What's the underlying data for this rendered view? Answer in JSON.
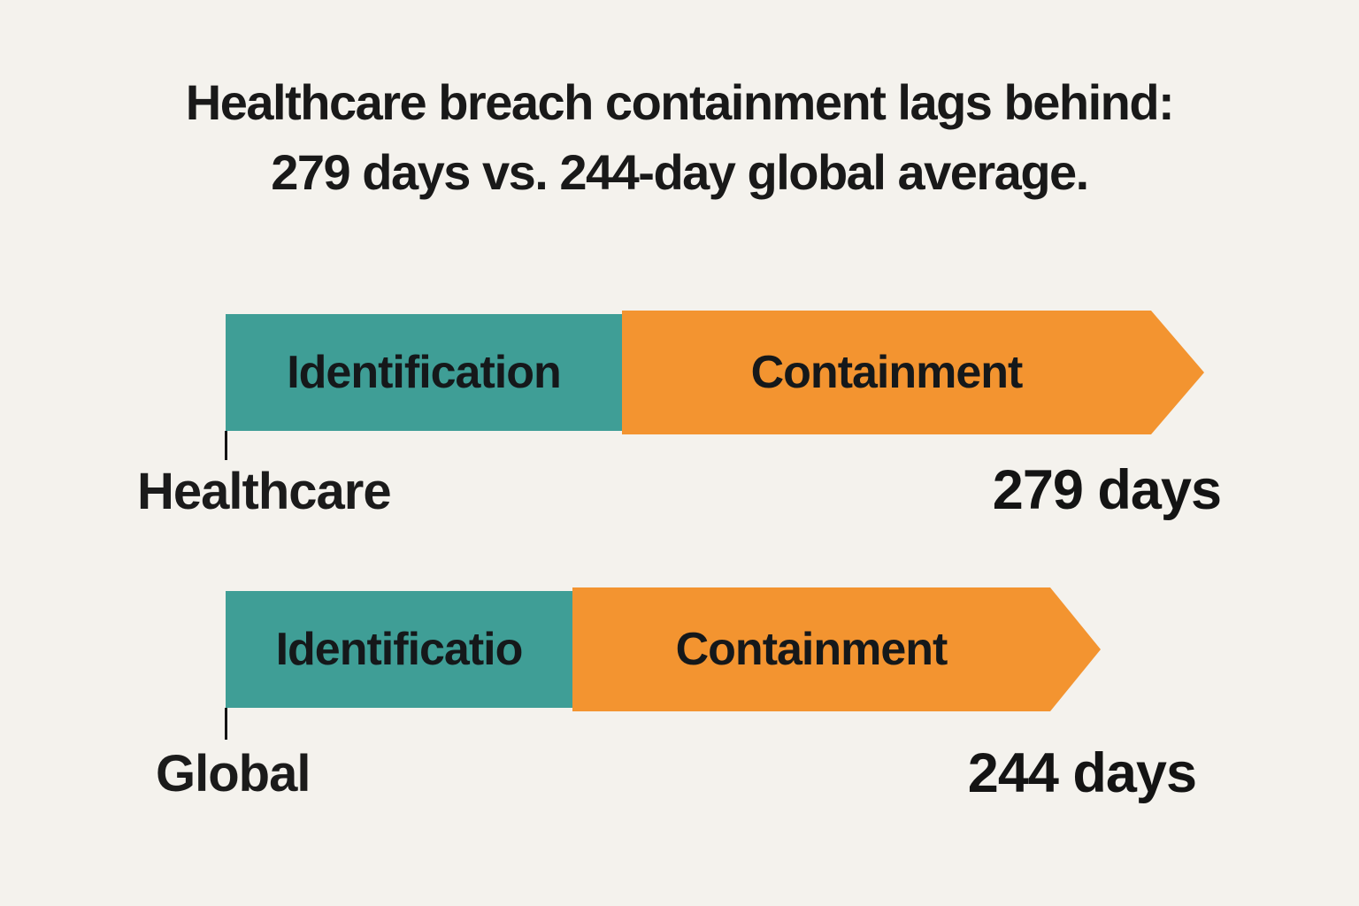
{
  "title": {
    "line1": "Healthcare breach containment lags behind:",
    "line2": "279 days vs. 244-day global average."
  },
  "colors": {
    "background": "#f4f2ed",
    "identification_segment": "#3f9e96",
    "containment_segment": "#f39430",
    "text": "#191919"
  },
  "chart_data": {
    "type": "bar",
    "orientation": "horizontal",
    "title": "Healthcare breach containment lags behind: 279 days vs. 244-day global average.",
    "unit": "days",
    "categories": [
      "Healthcare",
      "Global"
    ],
    "totals_days": [
      279,
      244
    ],
    "series": [
      {
        "name": "Identification",
        "color": "#3f9e96",
        "values_days_est": [
          119,
          103
        ]
      },
      {
        "name": "Containment",
        "color": "#f39430",
        "values_days_est": [
          160,
          141
        ]
      }
    ],
    "grid": false,
    "axes": "none",
    "legend": "labels rendered inside bar segments; totals rendered right of each bar",
    "bar_style": "stacked segments ending in arrow/chevron point"
  },
  "rows": [
    {
      "category": "Healthcare",
      "identification_label": "Identification",
      "containment_label": "Containment",
      "value_label": "279 days"
    },
    {
      "category": "Global",
      "identification_label": "Identificatio",
      "containment_label": "Containment",
      "value_label": "244 days"
    }
  ]
}
